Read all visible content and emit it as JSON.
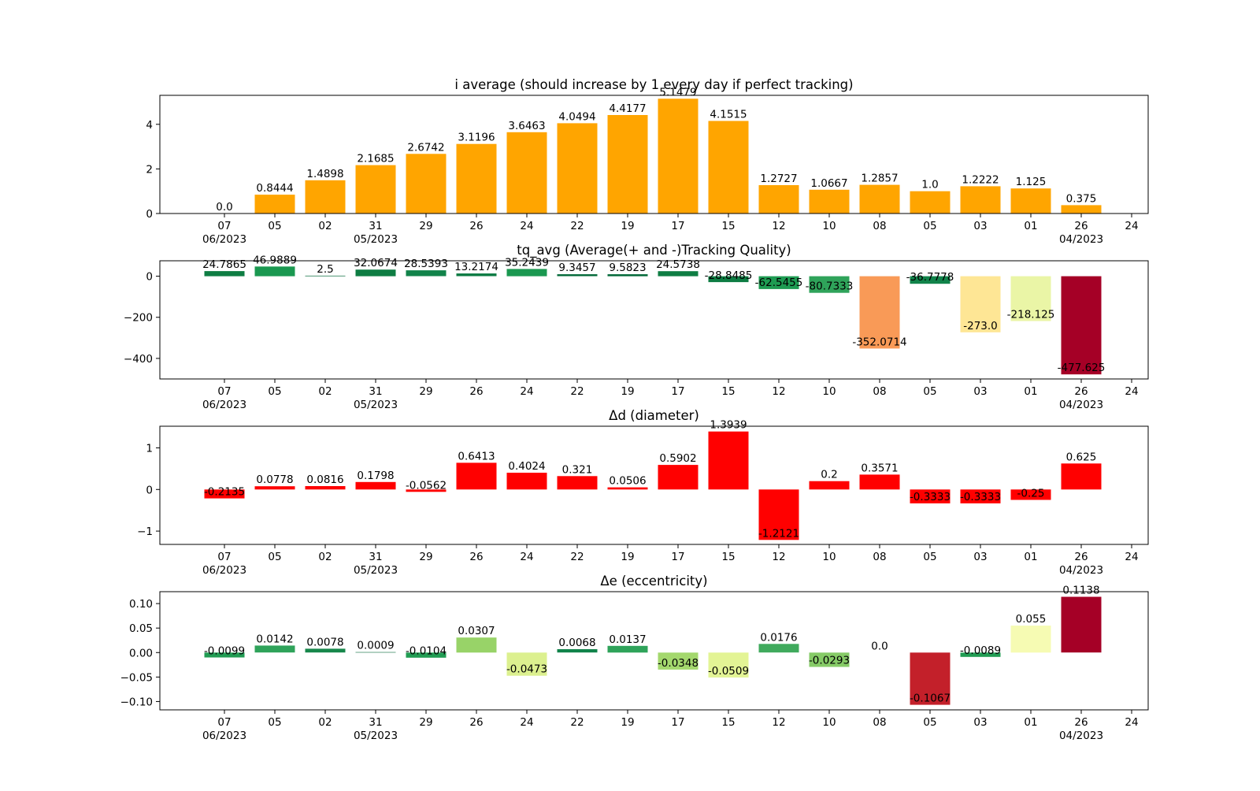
{
  "x_ticks": [
    {
      "day": "07",
      "month": "06/2023"
    },
    {
      "day": "05",
      "month": ""
    },
    {
      "day": "02",
      "month": ""
    },
    {
      "day": "31",
      "month": "05/2023"
    },
    {
      "day": "29",
      "month": ""
    },
    {
      "day": "26",
      "month": ""
    },
    {
      "day": "24",
      "month": ""
    },
    {
      "day": "22",
      "month": ""
    },
    {
      "day": "19",
      "month": ""
    },
    {
      "day": "17",
      "month": ""
    },
    {
      "day": "15",
      "month": ""
    },
    {
      "day": "12",
      "month": ""
    },
    {
      "day": "10",
      "month": ""
    },
    {
      "day": "08",
      "month": ""
    },
    {
      "day": "05",
      "month": ""
    },
    {
      "day": "03",
      "month": ""
    },
    {
      "day": "01",
      "month": ""
    },
    {
      "day": "26",
      "month": "04/2023"
    },
    {
      "day": "24",
      "month": ""
    }
  ],
  "chart_data": [
    {
      "type": "bar",
      "title": "i average (should increase by 1 every day if perfect tracking)",
      "xlabel": "",
      "ylabel": "",
      "ylim": [
        0,
        5.3
      ],
      "yticks": [
        {
          "v": 0,
          "label": "0"
        },
        {
          "v": 2,
          "label": "2"
        },
        {
          "v": 4,
          "label": "4"
        }
      ],
      "values": [
        0.0,
        0.8444,
        1.4898,
        2.1685,
        2.6742,
        3.1196,
        3.6463,
        4.0494,
        4.4177,
        5.1479,
        4.1515,
        1.2727,
        1.0667,
        1.2857,
        1.0,
        1.2222,
        1.125,
        0.375
      ],
      "labels": [
        "0.0",
        "0.8444",
        "1.4898",
        "2.1685",
        "2.6742",
        "3.1196",
        "3.6463",
        "4.0494",
        "4.4177",
        "5.1479",
        "4.1515",
        "1.2727",
        "1.0667",
        "1.2857",
        "1.0",
        "1.2222",
        "1.125",
        "0.375"
      ],
      "colors": [
        "#ffa500",
        "#ffa500",
        "#ffa500",
        "#ffa500",
        "#ffa500",
        "#ffa500",
        "#ffa500",
        "#ffa500",
        "#ffa500",
        "#ffa500",
        "#ffa500",
        "#ffa500",
        "#ffa500",
        "#ffa500",
        "#ffa500",
        "#ffa500",
        "#ffa500",
        "#ffa500"
      ]
    },
    {
      "type": "bar",
      "title": "tq_avg (Average(+ and -)Tracking Quality)",
      "xlabel": "",
      "ylabel": "",
      "ylim": [
        -500,
        75
      ],
      "yticks": [
        {
          "v": 0,
          "label": "0"
        },
        {
          "v": -200,
          "label": "−200"
        },
        {
          "v": -400,
          "label": "−400"
        }
      ],
      "values": [
        24.7865,
        46.9889,
        2.5,
        32.0674,
        28.5393,
        13.2174,
        35.2439,
        9.3457,
        9.5823,
        24.5738,
        -28.8485,
        -62.5455,
        -80.7333,
        -352.0714,
        -36.7778,
        -273.0,
        -218.125,
        -477.625
      ],
      "labels": [
        "24.7865",
        "46.9889",
        "2.5",
        "32.0674",
        "28.5393",
        "13.2174",
        "35.2439",
        "9.3457",
        "9.5823",
        "24.5738",
        "-28.8485",
        "-62.5455",
        "-80.7333",
        "-352.0714",
        "-36.7778",
        "-273.0",
        "-218.125",
        "-477.625"
      ],
      "colors": [
        "#0e7d43",
        "#1a9850",
        "#006837",
        "#0e7d43",
        "#11834a",
        "#0b7a42",
        "#1a9850",
        "#006837",
        "#006837",
        "#0e7d43",
        "#0e7d43",
        "#1e9b52",
        "#2fa35a",
        "#f99a57",
        "#11834a",
        "#fee695",
        "#eaf5a6",
        "#a50026"
      ]
    },
    {
      "type": "bar",
      "title": "Δd (diameter)",
      "xlabel": "",
      "ylabel": "",
      "ylim": [
        -1.32,
        1.52
      ],
      "yticks": [
        {
          "v": 1,
          "label": "1"
        },
        {
          "v": 0,
          "label": "0"
        },
        {
          "v": -1,
          "label": "−1"
        }
      ],
      "values": [
        -0.2135,
        0.0778,
        0.0816,
        0.1798,
        -0.0562,
        0.6413,
        0.4024,
        0.321,
        0.0506,
        0.5902,
        1.3939,
        -1.2121,
        0.2,
        0.3571,
        -0.3333,
        -0.3333,
        -0.25,
        0.625
      ],
      "labels": [
        "-0.2135",
        "0.0778",
        "0.0816",
        "0.1798",
        "-0.0562",
        "0.6413",
        "0.4024",
        "0.321",
        "0.0506",
        "0.5902",
        "1.3939",
        "-1.2121",
        "0.2",
        "0.3571",
        "-0.3333",
        "-0.3333",
        "-0.25",
        "0.625"
      ],
      "colors": [
        "#ff0000",
        "#ff0000",
        "#ff0000",
        "#ff0000",
        "#ff0000",
        "#ff0000",
        "#ff0000",
        "#ff0000",
        "#ff0000",
        "#ff0000",
        "#ff0000",
        "#ff0000",
        "#ff0000",
        "#ff0000",
        "#ff0000",
        "#ff0000",
        "#ff0000",
        "#ff0000"
      ]
    },
    {
      "type": "bar",
      "title": "Δe (eccentricity)",
      "xlabel": "",
      "ylabel": "",
      "ylim": [
        -0.117,
        0.1243
      ],
      "yticks": [
        {
          "v": 0.1,
          "label": "0.10"
        },
        {
          "v": 0.05,
          "label": "0.05"
        },
        {
          "v": 0,
          "label": "0.00"
        },
        {
          "v": -0.05,
          "label": "−0.05"
        },
        {
          "v": -0.1,
          "label": "−0.10"
        }
      ],
      "values": [
        -0.0099,
        0.0142,
        0.0078,
        0.0009,
        -0.0104,
        0.0307,
        -0.0473,
        0.0068,
        0.0137,
        -0.0348,
        -0.0509,
        0.0176,
        -0.0293,
        0.0,
        -0.1067,
        -0.0089,
        0.055,
        0.1138
      ],
      "labels": [
        "-0.0099",
        "0.0142",
        "0.0078",
        "0.0009",
        "-0.0104",
        "0.0307",
        "-0.0473",
        "0.0068",
        "0.0137",
        "-0.0348",
        "-0.0509",
        "0.0176",
        "-0.0293",
        "0.0",
        "-0.1067",
        "-0.0089",
        "0.055",
        "0.1138"
      ],
      "colors": [
        "#219c53",
        "#2fa35a",
        "#17874b",
        "#006837",
        "#219c53",
        "#98d368",
        "#dcf08f",
        "#11834a",
        "#2fa35a",
        "#a4d86e",
        "#e3f495",
        "#40aa5d",
        "#86cb67",
        "#006837",
        "#c3202a",
        "#219c53",
        "#f6fbb3",
        "#a50026"
      ]
    }
  ]
}
